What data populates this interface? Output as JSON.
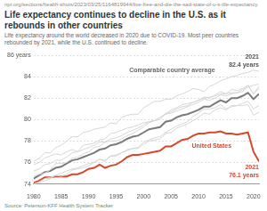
{
  "chart_data": {
    "type": "line",
    "url": "npr.org/sections/health-shots/2023/03/25/1164819944/live-free-and-die-the-sad-state-of-u-s-life-expectancy",
    "title": "Life expectancy continues to decline in the U.S. as it rebounds in other countries",
    "subtitle": "Life expectancy around the world decreased in 2020 due to COVID-19. Most peer countries rebounded by 2021, while the U.S. continued to decline.",
    "source": "Source: Peterson-KFF Health System Tracker",
    "x": [
      1980,
      1981,
      1982,
      1983,
      1984,
      1985,
      1986,
      1987,
      1988,
      1989,
      1990,
      1991,
      1992,
      1993,
      1994,
      1995,
      1996,
      1997,
      1998,
      1999,
      2000,
      2001,
      2002,
      2003,
      2004,
      2005,
      2006,
      2007,
      2008,
      2009,
      2010,
      2011,
      2012,
      2013,
      2014,
      2015,
      2016,
      2017,
      2018,
      2019,
      2020,
      2021
    ],
    "series": [
      {
        "color": "#d6d6d6",
        "values": [
          76.1,
          76.4,
          76.9,
          76.9,
          77.4,
          77.6,
          78.0,
          78.4,
          78.4,
          78.8,
          78.9,
          79.1,
          79.2,
          79.3,
          79.7,
          79.6,
          80.2,
          80.4,
          80.5,
          80.5,
          81.1,
          81.4,
          81.7,
          81.7,
          81.9,
          81.9,
          82.2,
          82.4,
          82.6,
          82.9,
          82.8,
          82.6,
          83.1,
          83.3,
          83.6,
          83.8,
          84.0,
          84.1,
          84.3,
          84.4,
          84.6,
          84.5
        ]
      },
      {
        "color": "#d6d6d6",
        "values": [
          74.0,
          74.2,
          74.5,
          74.6,
          74.8,
          75.0,
          75.2,
          75.4,
          75.5,
          75.7,
          75.9,
          76.0,
          76.3,
          76.2,
          76.6,
          76.7,
          76.9,
          77.1,
          77.3,
          77.3,
          77.7,
          78.0,
          78.1,
          78.2,
          78.7,
          78.8,
          79.2,
          79.4,
          79.6,
          79.9,
          80.2,
          80.6,
          80.5,
          80.9,
          81.1,
          80.9,
          81.3,
          81.3,
          81.5,
          81.7,
          81.0,
          81.3
        ]
      },
      {
        "color": "#d6d6d6",
        "values": [
          75.2,
          75.4,
          75.8,
          75.9,
          76.2,
          76.2,
          76.5,
          76.9,
          77.0,
          77.2,
          77.4,
          77.6,
          77.9,
          77.9,
          78.2,
          78.3,
          78.5,
          78.8,
          79.0,
          79.2,
          79.5,
          79.8,
          79.9,
          80.0,
          80.6,
          80.7,
          81.0,
          81.2,
          81.3,
          81.6,
          81.8,
          82.1,
          82.0,
          82.3,
          82.6,
          82.4,
          82.8,
          82.7,
          82.9,
          83.2,
          82.4,
          82.9
        ]
      },
      {
        "color": "#d6d6d6",
        "values": [
          75.8,
          76.0,
          76.4,
          76.6,
          76.8,
          76.7,
          77.0,
          77.2,
          77.0,
          77.6,
          77.7,
          77.8,
          78.1,
          78.2,
          78.7,
          78.8,
          79.0,
          79.2,
          79.3,
          79.5,
          79.7,
          79.8,
          79.9,
          80.2,
          80.5,
          80.6,
          80.8,
          81.0,
          81.2,
          81.4,
          81.6,
          81.9,
          81.8,
          82.0,
          82.3,
          82.2,
          82.4,
          82.5,
          82.6,
          83.2,
          82.4,
          83.1
        ]
      },
      {
        "color": "#d6d6d6",
        "values": [
          74.0,
          74.1,
          74.3,
          74.5,
          74.8,
          74.7,
          74.9,
          75.3,
          75.4,
          75.5,
          75.7,
          76.0,
          76.3,
          76.1,
          76.6,
          76.6,
          76.9,
          77.2,
          77.3,
          77.4,
          77.9,
          78.1,
          78.3,
          78.4,
          78.8,
          79.1,
          79.4,
          79.6,
          79.8,
          80.3,
          80.6,
          81.0,
          81.0,
          81.1,
          81.4,
          81.0,
          81.2,
          81.3,
          81.3,
          81.4,
          80.4,
          80.7
        ]
      },
      {
        "color": "#d6d6d6",
        "values": [
          74.7,
          74.9,
          75.0,
          75.3,
          75.9,
          75.9,
          76.0,
          76.4,
          76.5,
          76.8,
          77.0,
          77.4,
          77.5,
          77.9,
          78.0,
          78.0,
          78.2,
          78.5,
          78.7,
          79.0,
          79.3,
          79.7,
          79.9,
          80.2,
          80.5,
          80.9,
          81.1,
          81.4,
          81.5,
          81.6,
          81.8,
          82.0,
          82.1,
          82.2,
          82.4,
          82.4,
          82.5,
          82.5,
          82.8,
          83.0,
          83.2,
          83.3
        ]
      },
      {
        "name": "Comparable country average",
        "color": "#7a7a7a",
        "values": [
          74.5,
          74.8,
          75.1,
          75.2,
          75.5,
          75.6,
          75.9,
          76.2,
          76.3,
          76.5,
          76.7,
          76.9,
          77.2,
          77.3,
          77.6,
          77.7,
          77.9,
          78.2,
          78.4,
          78.5,
          78.8,
          79.1,
          79.2,
          79.3,
          79.8,
          79.9,
          80.2,
          80.4,
          80.5,
          80.7,
          80.9,
          81.2,
          81.2,
          81.5,
          81.8,
          81.6,
          82.0,
          82.0,
          82.2,
          82.5,
          81.9,
          82.4
        ]
      },
      {
        "name": "United States",
        "color": "#d9472b",
        "values": [
          74.1,
          74.3,
          74.6,
          74.6,
          74.7,
          74.7,
          74.7,
          74.9,
          74.9,
          75.1,
          75.4,
          75.5,
          75.8,
          75.5,
          75.7,
          75.8,
          76.1,
          76.5,
          76.7,
          76.7,
          76.8,
          76.9,
          77.0,
          77.1,
          77.5,
          77.5,
          77.8,
          78.1,
          78.2,
          78.5,
          78.7,
          78.7,
          78.8,
          78.8,
          78.9,
          78.7,
          78.7,
          78.6,
          78.7,
          78.8,
          77.0,
          76.1
        ]
      }
    ],
    "annotations": [
      {
        "text": "Comparable country average",
        "x": 2013,
        "y": 84.6,
        "color": "#666666"
      },
      {
        "text": "2021",
        "x": 2021,
        "y": 85.8,
        "color": "#555555"
      },
      {
        "text": "82.4 years",
        "x": 2021,
        "y": 85.1,
        "color": "#555555"
      },
      {
        "text": "United States",
        "x": 2016,
        "y": 77.5,
        "color": "#d9472b"
      },
      {
        "text": "2021",
        "x": 2021,
        "y": 75.5,
        "color": "#d9472b"
      },
      {
        "text": "76.1 years",
        "x": 2021,
        "y": 74.8,
        "color": "#d9472b"
      }
    ],
    "xlim": [
      1980,
      2021
    ],
    "xticks": [
      1980,
      1985,
      1990,
      1995,
      2000,
      2005,
      2010,
      2015,
      2020
    ],
    "ylim": [
      74,
      86
    ],
    "yticks": [
      74,
      76,
      78,
      80,
      82,
      84,
      {
        "value": 86,
        "label": "86 years"
      }
    ],
    "grid": true
  }
}
